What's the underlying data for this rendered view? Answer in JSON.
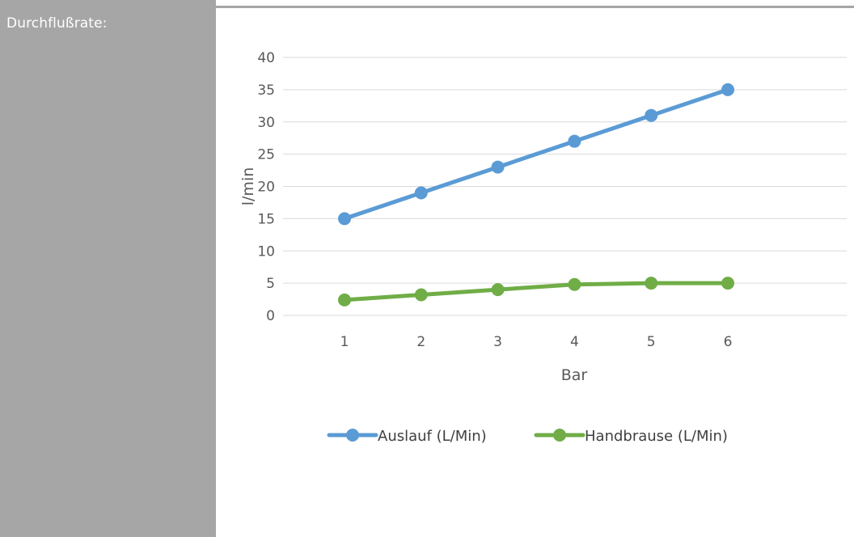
{
  "sidebar": {
    "label": "Durchflußrate:"
  },
  "chart_data": {
    "type": "line",
    "xlabel": "Bar",
    "ylabel": "l/min",
    "categories": [
      1,
      2,
      3,
      4,
      5,
      6
    ],
    "ylim": [
      0,
      40
    ],
    "yticks": [
      0,
      5,
      10,
      15,
      20,
      25,
      30,
      35,
      40
    ],
    "grid": true,
    "legend_position": "bottom",
    "series": [
      {
        "name": "Auslauf (L/Min)",
        "color": "#5b9bd5",
        "values": [
          15,
          19,
          23,
          27,
          31,
          35
        ]
      },
      {
        "name": "Handbrause (L/Min)",
        "color": "#70ad47",
        "values": [
          2.4,
          3.2,
          4,
          4.8,
          5,
          5
        ]
      }
    ]
  }
}
